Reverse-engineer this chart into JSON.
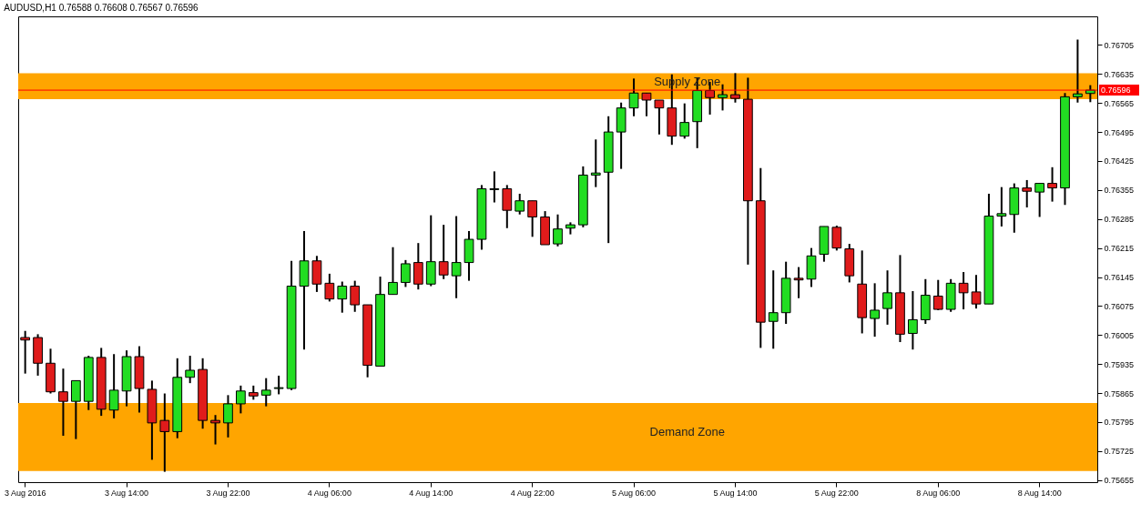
{
  "chart_data": {
    "type": "candlestick",
    "title": "AUDUSD,H1  0.76588 0.76608 0.76567 0.76596",
    "categories": [
      "3 Aug 2016",
      null,
      null,
      null,
      null,
      null,
      null,
      null,
      "3 Aug 14:00",
      null,
      null,
      null,
      null,
      null,
      null,
      null,
      "3 Aug 22:00",
      null,
      null,
      null,
      null,
      null,
      null,
      null,
      "4 Aug 06:00",
      null,
      null,
      null,
      null,
      null,
      null,
      null,
      "4 Aug 14:00",
      null,
      null,
      null,
      null,
      null,
      null,
      null,
      "4 Aug 22:00",
      null,
      null,
      null,
      null,
      null,
      null,
      null,
      "5 Aug 06:00",
      null,
      null,
      null,
      null,
      null,
      null,
      null,
      "5 Aug 14:00",
      null,
      null,
      null,
      null,
      null,
      null,
      null,
      "5 Aug 22:00",
      null,
      null,
      null,
      null,
      null,
      null,
      null,
      "8 Aug 06:00",
      null,
      null,
      null,
      null,
      null,
      null,
      null,
      "8 Aug 14:00",
      null,
      null,
      null,
      null
    ],
    "ohlc": [
      [
        0.75999,
        0.76015,
        0.75912,
        0.75993
      ],
      [
        0.75999,
        0.76007,
        0.75907,
        0.75937
      ],
      [
        0.75937,
        0.75972,
        0.75864,
        0.75868
      ],
      [
        0.75868,
        0.75924,
        0.75762,
        0.75845
      ],
      [
        0.75845,
        0.75895,
        0.75754,
        0.75895
      ],
      [
        0.75845,
        0.75955,
        0.75824,
        0.75951
      ],
      [
        0.75951,
        0.75974,
        0.7581,
        0.75826
      ],
      [
        0.75824,
        0.75959,
        0.75804,
        0.75872
      ],
      [
        0.7587,
        0.75968,
        0.75833,
        0.75953
      ],
      [
        0.75953,
        0.75978,
        0.75818,
        0.75876
      ],
      [
        0.75874,
        0.75895,
        0.75704,
        0.75793
      ],
      [
        0.75799,
        0.75864,
        0.75675,
        0.75772
      ],
      [
        0.75772,
        0.75949,
        0.75756,
        0.75903
      ],
      [
        0.75903,
        0.75955,
        0.75889,
        0.7592
      ],
      [
        0.75922,
        0.75949,
        0.75779,
        0.75799
      ],
      [
        0.75799,
        0.75812,
        0.75741,
        0.75793
      ],
      [
        0.75793,
        0.7586,
        0.75758,
        0.75839
      ],
      [
        0.75839,
        0.75883,
        0.75816,
        0.7587
      ],
      [
        0.75866,
        0.75883,
        0.75849,
        0.75858
      ],
      [
        0.7586,
        0.75901,
        0.75833,
        0.75872
      ],
      [
        0.75876,
        0.75907,
        0.75862,
        0.75878
      ],
      [
        0.75876,
        0.76184,
        0.75872,
        0.76123
      ],
      [
        0.76123,
        0.76256,
        0.7597,
        0.76184
      ],
      [
        0.76184,
        0.76196,
        0.76109,
        0.76128
      ],
      [
        0.7613,
        0.76153,
        0.76086,
        0.76092
      ],
      [
        0.76092,
        0.76134,
        0.76059,
        0.76123
      ],
      [
        0.76123,
        0.76136,
        0.76061,
        0.76078
      ],
      [
        0.76078,
        0.76078,
        0.75903,
        0.75932
      ],
      [
        0.7593,
        0.76146,
        0.7593,
        0.76103
      ],
      [
        0.76103,
        0.76217,
        0.76103,
        0.76132
      ],
      [
        0.76132,
        0.76186,
        0.76121,
        0.76177
      ],
      [
        0.7618,
        0.76227,
        0.76115,
        0.76128
      ],
      [
        0.76128,
        0.76294,
        0.76123,
        0.76182
      ],
      [
        0.76182,
        0.76271,
        0.7614,
        0.7615
      ],
      [
        0.76148,
        0.76292,
        0.76094,
        0.7618
      ],
      [
        0.7618,
        0.76256,
        0.76136,
        0.76236
      ],
      [
        0.76236,
        0.76367,
        0.76211,
        0.76358
      ],
      [
        0.76356,
        0.764,
        0.76325,
        0.76358
      ],
      [
        0.76358,
        0.76367,
        0.76263,
        0.76306
      ],
      [
        0.76304,
        0.76346,
        0.76296,
        0.76329
      ],
      [
        0.76329,
        0.76329,
        0.76242,
        0.7629
      ],
      [
        0.7629,
        0.76304,
        0.76223,
        0.76223
      ],
      [
        0.76225,
        0.76296,
        0.76219,
        0.76261
      ],
      [
        0.76263,
        0.76277,
        0.76248,
        0.76271
      ],
      [
        0.76271,
        0.76412,
        0.76265,
        0.76391
      ],
      [
        0.76391,
        0.76477,
        0.76362,
        0.76396
      ],
      [
        0.76398,
        0.76533,
        0.76227,
        0.76495
      ],
      [
        0.76495,
        0.76566,
        0.76406,
        0.76553
      ],
      [
        0.76553,
        0.76624,
        0.76533,
        0.76589
      ],
      [
        0.76589,
        0.76589,
        0.76533,
        0.76572
      ],
      [
        0.76572,
        0.76572,
        0.76489,
        0.76553
      ],
      [
        0.76553,
        0.76634,
        0.76464,
        0.76485
      ],
      [
        0.76485,
        0.76564,
        0.76479,
        0.76518
      ],
      [
        0.7652,
        0.76626,
        0.76456,
        0.76595
      ],
      [
        0.76595,
        0.76616,
        0.76537,
        0.76578
      ],
      [
        0.76578,
        0.7661,
        0.76547,
        0.76585
      ],
      [
        0.76585,
        0.76637,
        0.76566,
        0.76576
      ],
      [
        0.76574,
        0.76626,
        0.76175,
        0.76329
      ],
      [
        0.76329,
        0.76408,
        0.75974,
        0.76036
      ],
      [
        0.76038,
        0.76161,
        0.75972,
        0.76059
      ],
      [
        0.76059,
        0.76182,
        0.76032,
        0.76142
      ],
      [
        0.76142,
        0.76169,
        0.76094,
        0.76138
      ],
      [
        0.7614,
        0.76215,
        0.76121,
        0.76196
      ],
      [
        0.762,
        0.76267,
        0.76182,
        0.76267
      ],
      [
        0.76265,
        0.76269,
        0.76209,
        0.76215
      ],
      [
        0.76213,
        0.76225,
        0.76132,
        0.76148
      ],
      [
        0.76128,
        0.76209,
        0.76009,
        0.76047
      ],
      [
        0.76045,
        0.7613,
        0.76001,
        0.76065
      ],
      [
        0.76069,
        0.76161,
        0.7603,
        0.76107
      ],
      [
        0.76107,
        0.76198,
        0.75988,
        0.76007
      ],
      [
        0.76009,
        0.76111,
        0.7597,
        0.76042
      ],
      [
        0.76042,
        0.7614,
        0.76032,
        0.76101
      ],
      [
        0.76099,
        0.76138,
        0.76065,
        0.76067
      ],
      [
        0.76067,
        0.7614,
        0.76061,
        0.7613
      ],
      [
        0.7613,
        0.76157,
        0.76067,
        0.76107
      ],
      [
        0.76109,
        0.7615,
        0.76069,
        0.7608
      ],
      [
        0.7608,
        0.76346,
        0.7608,
        0.76292
      ],
      [
        0.76292,
        0.76362,
        0.76267,
        0.76298
      ],
      [
        0.76296,
        0.76371,
        0.76252,
        0.7636
      ],
      [
        0.7636,
        0.76379,
        0.76313,
        0.76352
      ],
      [
        0.7635,
        0.76371,
        0.7629,
        0.76371
      ],
      [
        0.76371,
        0.7641,
        0.76327,
        0.7636
      ],
      [
        0.7636,
        0.76589,
        0.76319,
        0.7658
      ],
      [
        0.7658,
        0.76718,
        0.76566,
        0.76587
      ],
      [
        0.76588,
        0.76608,
        0.76567,
        0.76596
      ]
    ],
    "colors": [
      "#e01b1b",
      "#e01b1b",
      "#e01b1b",
      "#e01b1b",
      "#22dd22",
      "#22dd22",
      "#e01b1b",
      "#22dd22",
      "#22dd22",
      "#e01b1b",
      "#e01b1b",
      "#e01b1b",
      "#22dd22",
      "#22dd22",
      "#e01b1b",
      "#e01b1b",
      "#22dd22",
      "#22dd22",
      "#e01b1b",
      "#22dd22",
      "#22dd22",
      "#22dd22",
      "#22dd22",
      "#e01b1b",
      "#e01b1b",
      "#22dd22",
      "#e01b1b",
      "#e01b1b",
      "#22dd22",
      "#22dd22",
      "#22dd22",
      "#e01b1b",
      "#22dd22",
      "#e01b1b",
      "#22dd22",
      "#22dd22",
      "#22dd22",
      "#22dd22",
      "#e01b1b",
      "#22dd22",
      "#e01b1b",
      "#e01b1b",
      "#22dd22",
      "#22dd22",
      "#22dd22",
      "#22dd22",
      "#22dd22",
      "#22dd22",
      "#22dd22",
      "#e01b1b",
      "#e01b1b",
      "#e01b1b",
      "#22dd22",
      "#22dd22",
      "#e01b1b",
      "#22dd22",
      "#e01b1b",
      "#e01b1b",
      "#e01b1b",
      "#22dd22",
      "#22dd22",
      "#e01b1b",
      "#22dd22",
      "#22dd22",
      "#e01b1b",
      "#e01b1b",
      "#e01b1b",
      "#22dd22",
      "#22dd22",
      "#e01b1b",
      "#22dd22",
      "#22dd22",
      "#e01b1b",
      "#22dd22",
      "#e01b1b",
      "#e01b1b",
      "#22dd22",
      "#22dd22",
      "#22dd22",
      "#e01b1b",
      "#22dd22",
      "#e01b1b",
      "#22dd22",
      "#22dd22",
      "#22dd22"
    ],
    "ylim": [
      0.7565,
      0.76774
    ],
    "yticks": [
      0.75655,
      0.75725,
      0.75795,
      0.75865,
      0.75935,
      0.76005,
      0.76075,
      0.76145,
      0.76215,
      0.76285,
      0.76355,
      0.76425,
      0.76495,
      0.76565,
      0.76635,
      0.76705
    ],
    "bands": [
      {
        "axis": "y",
        "from": 0.76574,
        "to": 0.76637,
        "label": "Supply Zone",
        "color": "#ffa500"
      },
      {
        "axis": "y",
        "from": 0.75677,
        "to": 0.75841,
        "label": "Demand Zone",
        "color": "#ffa500"
      }
    ],
    "ref_lines": [
      {
        "axis": "y",
        "value": 0.76596,
        "label": "0.76596",
        "color": "#ff0000"
      }
    ]
  }
}
